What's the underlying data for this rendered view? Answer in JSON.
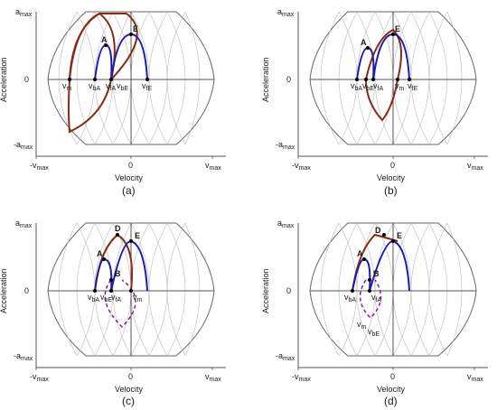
{
  "colors": {
    "blue": "#1b1bb3",
    "brown": "#8b2a12",
    "purple": "#8a1aa0",
    "grid": "#bbbbbb",
    "axis": "#555555"
  },
  "axis_text": {
    "amax": "a",
    "amax_sub": "max",
    "zero_y": "0",
    "amin": "-a",
    "amin_sub": "max",
    "vmin": "-v",
    "vmin_sub": "max",
    "zero_x": "0",
    "vmax": "v",
    "vmax_sub": "max",
    "ylabel": "Acceleration",
    "xlabel": "Velocity"
  },
  "panels": [
    {
      "caption": "(a)",
      "points": [
        {
          "label": "A"
        },
        {
          "label": "E"
        }
      ],
      "velocity_labels": [
        {
          "main": "v",
          "sub": "m"
        },
        {
          "main": "v",
          "sub": "bA"
        },
        {
          "main": "v",
          "sub": "fA"
        },
        {
          "main": "v",
          "sub": "bE"
        },
        {
          "main": "v",
          "sub": "fE"
        }
      ]
    },
    {
      "caption": "(b)",
      "points": [
        {
          "label": "A"
        },
        {
          "label": "E"
        }
      ],
      "velocity_labels": [
        {
          "main": "v",
          "sub": "bA"
        },
        {
          "main": "v",
          "sub": "bE"
        },
        {
          "main": "v",
          "sub": "fA"
        },
        {
          "main": "v",
          "sub": "m"
        },
        {
          "main": "v",
          "sub": "fE"
        }
      ]
    },
    {
      "caption": "(c)",
      "points": [
        {
          "label": "A"
        },
        {
          "label": "D"
        },
        {
          "label": "E"
        },
        {
          "label": "B"
        }
      ],
      "velocity_labels": [
        {
          "main": "v",
          "sub": "bA"
        },
        {
          "main": "v",
          "sub": "bE"
        },
        {
          "main": "v",
          "sub": "fA"
        },
        {
          "main": "v",
          "sub": "m"
        }
      ]
    },
    {
      "caption": "(d)",
      "points": [
        {
          "label": "A"
        },
        {
          "label": "D"
        },
        {
          "label": "E"
        },
        {
          "label": "B"
        }
      ],
      "velocity_labels": [
        {
          "main": "v",
          "sub": "bA"
        },
        {
          "main": "v",
          "sub": "fA"
        },
        {
          "main": "v",
          "sub": "m"
        },
        {
          "main": "v",
          "sub": "bE"
        }
      ]
    }
  ]
}
